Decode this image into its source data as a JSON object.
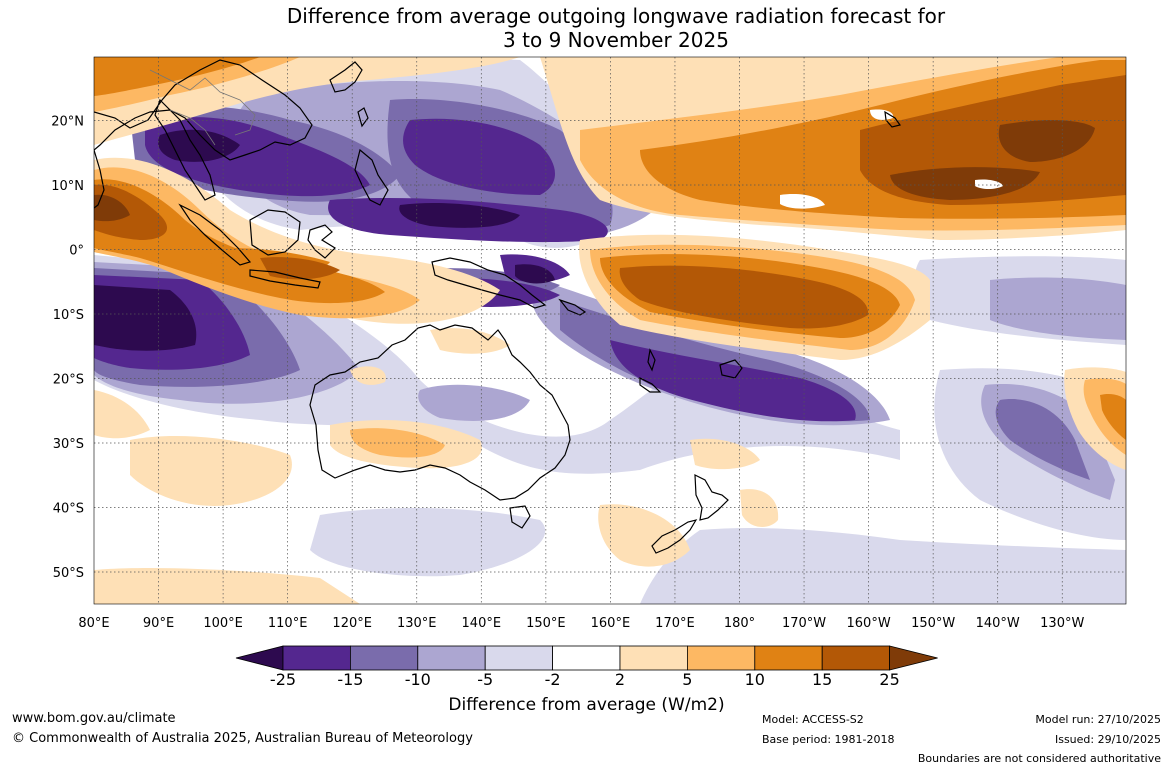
{
  "title": {
    "line1": "Difference from average outgoing longwave radiation forecast for",
    "line2": "3 to 9 November 2025"
  },
  "map": {
    "lat_labels": [
      "20°N",
      "10°N",
      "0°",
      "10°S",
      "20°S",
      "30°S",
      "40°S",
      "50°S"
    ],
    "lon_labels": [
      "80°E",
      "90°E",
      "100°E",
      "110°E",
      "120°E",
      "130°E",
      "140°E",
      "150°E",
      "160°E",
      "170°E",
      "180°",
      "170°W",
      "160°W",
      "150°W",
      "140°W",
      "130°W"
    ]
  },
  "legend": {
    "ticks": [
      "-25",
      "-15",
      "-10",
      "-5",
      "-2",
      "2",
      "5",
      "10",
      "15",
      "25"
    ],
    "colors": [
      "#2d0a4f",
      "#54278f",
      "#7a6cac",
      "#aca6d1",
      "#d9d9ec",
      "#ffffff",
      "#fee0b6",
      "#fdb863",
      "#e08214",
      "#b35806",
      "#7f3b08"
    ],
    "title": "Difference from average (W/m2)"
  },
  "footer": {
    "website": "www.bom.gov.au/climate",
    "copyright": "© Commonwealth of Australia 2025, Australian Bureau of Meteorology",
    "model": "Model: ACCESS-S2",
    "base_period": "Base period: 1981-2018",
    "model_run": "Model run: 27/10/2025",
    "issued": "Issued: 29/10/2025",
    "boundaries": "Boundaries are not considered authoritative"
  }
}
